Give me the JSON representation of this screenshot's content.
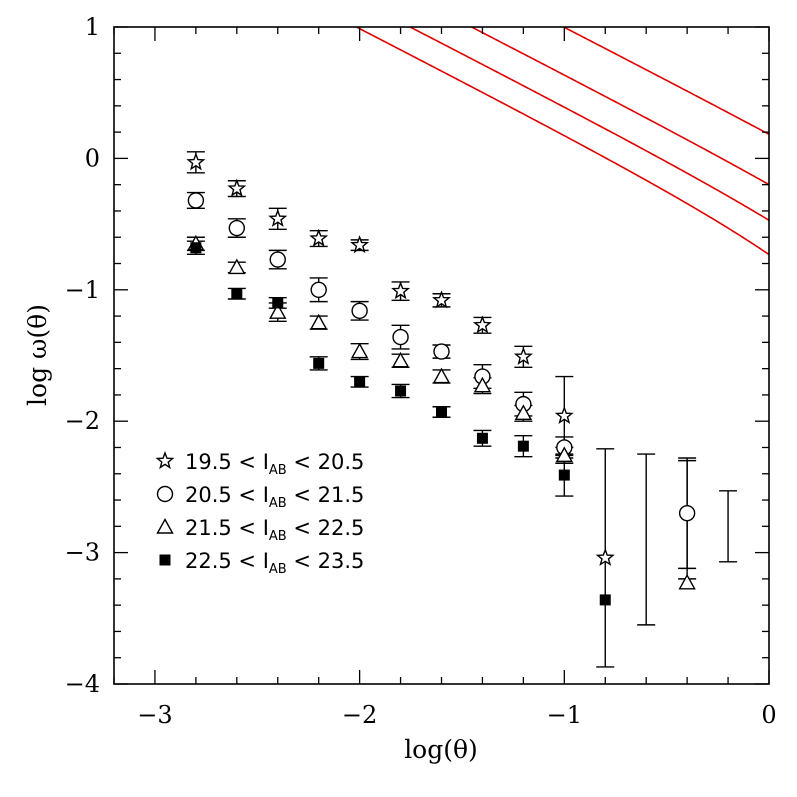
{
  "chart_data": {
    "type": "scatter",
    "xlabel": "log(θ)",
    "ylabel": "log ω(θ)",
    "xlim": [
      -3.2,
      0
    ],
    "ylim": [
      -4,
      1
    ],
    "x_ticks": [
      -3,
      -2,
      -1,
      0
    ],
    "y_ticks": [
      1,
      0,
      -1,
      -2,
      -3,
      -4
    ],
    "x_tick_labels": [
      "−3",
      "−2",
      "−1",
      "0"
    ],
    "y_tick_labels": [
      "1",
      "0",
      "−1",
      "−2",
      "−3",
      "−4"
    ],
    "grid": false,
    "legend_position": "lower-left",
    "fit_color": "#e00000",
    "series": [
      {
        "name": "19.5 < I_AB < 20.5",
        "legend_parts": [
          "19.5  <  I",
          "AB",
          "  <  20.5"
        ],
        "marker": "star",
        "points": [
          {
            "x": -2.8,
            "y": -0.03,
            "err": 0.08
          },
          {
            "x": -2.6,
            "y": -0.23,
            "err": 0.06
          },
          {
            "x": -2.4,
            "y": -0.46,
            "err": 0.08
          },
          {
            "x": -2.2,
            "y": -0.61,
            "err": 0.06
          },
          {
            "x": -2.0,
            "y": -0.66,
            "err": 0.04
          },
          {
            "x": -1.8,
            "y": -1.01,
            "err": 0.07
          },
          {
            "x": -1.6,
            "y": -1.08,
            "err": 0.05
          },
          {
            "x": -1.4,
            "y": -1.27,
            "err": 0.06
          },
          {
            "x": -1.2,
            "y": -1.51,
            "err": 0.08
          },
          {
            "x": -1.0,
            "y": -1.96,
            "err": 0.3
          },
          {
            "x": -0.8,
            "y": -3.04,
            "err": 0.83
          },
          {
            "x": -0.6,
            "y": -2.9,
            "err": 0.65
          },
          {
            "x": -0.4,
            "y": -2.75,
            "err": 0.45
          },
          {
            "x": -0.2,
            "y": -2.8,
            "err": 0.27
          }
        ],
        "fit": {
          "A": 0.2,
          "C": -0.06
        }
      },
      {
        "name": "20.5 < I_AB < 21.5",
        "legend_parts": [
          "20.5  <  I",
          "AB",
          "  <  21.5"
        ],
        "marker": "circle",
        "points": [
          {
            "x": -2.8,
            "y": -0.32,
            "err": 0.06
          },
          {
            "x": -2.6,
            "y": -0.53,
            "err": 0.07
          },
          {
            "x": -2.4,
            "y": -0.77,
            "err": 0.07
          },
          {
            "x": -2.2,
            "y": -1.0,
            "err": 0.09
          },
          {
            "x": -2.0,
            "y": -1.16,
            "err": 0.07
          },
          {
            "x": -1.8,
            "y": -1.36,
            "err": 0.09
          },
          {
            "x": -1.6,
            "y": -1.47,
            "err": 0.05
          },
          {
            "x": -1.4,
            "y": -1.66,
            "err": 0.09
          },
          {
            "x": -1.2,
            "y": -1.87,
            "err": 0.09
          },
          {
            "x": -1.0,
            "y": -2.2,
            "err": 0.08
          },
          {
            "x": -0.4,
            "y": -2.7,
            "err": 0.42
          }
        ],
        "fit": {
          "A": -0.16,
          "C": -0.06
        }
      },
      {
        "name": "21.5 < I_AB < 22.5",
        "legend_parts": [
          "21.5  <  I",
          "AB",
          "  <  22.5"
        ],
        "marker": "triangle",
        "points": [
          {
            "x": -2.8,
            "y": -0.65,
            "err": 0.05
          },
          {
            "x": -2.6,
            "y": -0.83,
            "err": 0.04
          },
          {
            "x": -2.4,
            "y": -1.17,
            "err": 0.07
          },
          {
            "x": -2.2,
            "y": -1.25,
            "err": 0.05
          },
          {
            "x": -2.0,
            "y": -1.47,
            "err": 0.06
          },
          {
            "x": -1.8,
            "y": -1.54,
            "err": 0.05
          },
          {
            "x": -1.6,
            "y": -1.66,
            "err": 0.05
          },
          {
            "x": -1.4,
            "y": -1.73,
            "err": 0.06
          },
          {
            "x": -1.2,
            "y": -1.94,
            "err": 0.06
          },
          {
            "x": -1.0,
            "y": -2.26,
            "err": 0.06
          },
          {
            "x": -0.4,
            "y": -3.23,
            "err": 0.0
          }
        ],
        "fit": {
          "A": -0.4,
          "C": -0.06
        }
      },
      {
        "name": "22.5 < I_AB < 23.5",
        "legend_parts": [
          "22.5  <  I",
          "AB",
          "  <  23.5"
        ],
        "marker": "square",
        "points": [
          {
            "x": -2.8,
            "y": -0.68,
            "err": 0.05
          },
          {
            "x": -2.6,
            "y": -1.03,
            "err": 0.04
          },
          {
            "x": -2.4,
            "y": -1.1,
            "err": 0.04
          },
          {
            "x": -2.2,
            "y": -1.56,
            "err": 0.05
          },
          {
            "x": -2.0,
            "y": -1.7,
            "err": 0.04
          },
          {
            "x": -1.8,
            "y": -1.77,
            "err": 0.05
          },
          {
            "x": -1.6,
            "y": -1.93,
            "err": 0.04
          },
          {
            "x": -1.4,
            "y": -2.13,
            "err": 0.06
          },
          {
            "x": -1.2,
            "y": -2.19,
            "err": 0.08
          },
          {
            "x": -1.0,
            "y": -2.41,
            "err": 0.16
          },
          {
            "x": -0.8,
            "y": -3.36,
            "err": 0.0
          }
        ],
        "fit": {
          "A": -0.61,
          "C": -0.06
        }
      }
    ]
  }
}
